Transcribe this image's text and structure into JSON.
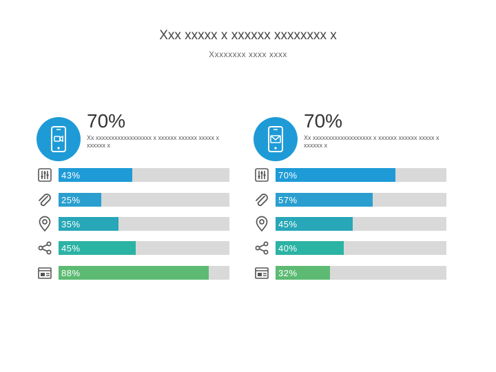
{
  "title": "Xxx xxxxx x xxxxxx xxxxxxxx x",
  "subtitle": "Xxxxxxxx xxxx xxxx",
  "colors": [
    "#1e9bd7",
    "#2a9fcf",
    "#27a7b7",
    "#2bb3a4",
    "#5cba73"
  ],
  "track_color": "#d9d9d9",
  "row_icons": [
    "sliders-icon",
    "paperclip-icon",
    "location-pin-icon",
    "share-icon",
    "chip-card-icon"
  ],
  "chart_data": [
    {
      "type": "bar",
      "orientation": "horizontal",
      "panel_icon": "smartphone-video-icon",
      "headline": "70%",
      "description": "Xx xxxxxxxxxxxxxxxxxx x xxxxxx xxxxxx xxxxx x xxxxxx x",
      "values": [
        43,
        25,
        35,
        45,
        88
      ],
      "labels": [
        "43%",
        "25%",
        "35%",
        "45%",
        "88%"
      ],
      "xlim": [
        0,
        100
      ]
    },
    {
      "type": "bar",
      "orientation": "horizontal",
      "panel_icon": "smartphone-mail-icon",
      "headline": "70%",
      "description": "Xx xxxxxxxxxxxxxxxxxxx x xxxxxx xxxxxx xxxxx x xxxxxx x",
      "values": [
        70,
        57,
        45,
        40,
        32
      ],
      "labels": [
        "70%",
        "57%",
        "45%",
        "40%",
        "32%"
      ],
      "xlim": [
        0,
        100
      ]
    }
  ]
}
